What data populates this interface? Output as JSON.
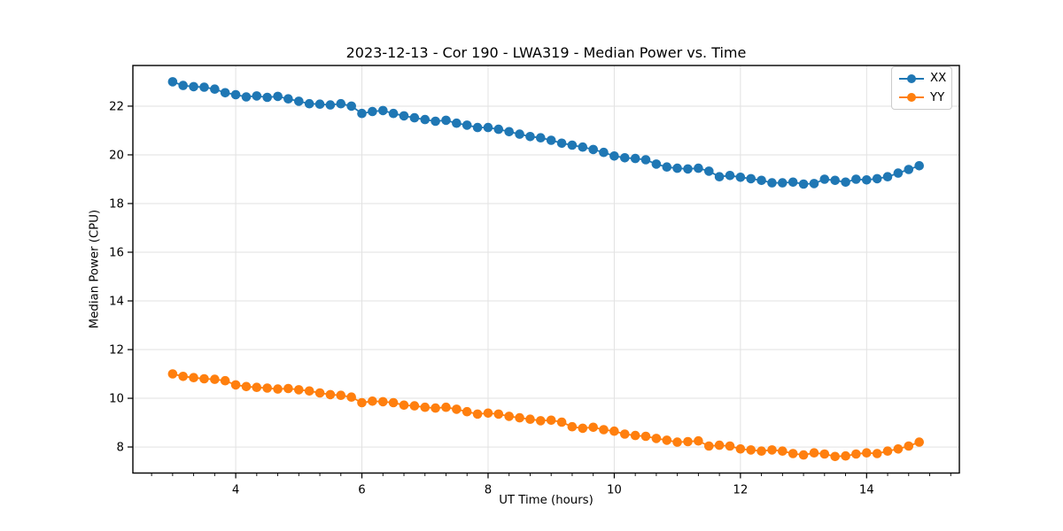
{
  "chart_data": {
    "type": "line",
    "title": "2023-12-13 - Cor 190 - LWA319 - Median Power vs. Time",
    "xlabel": "UT Time (hours)",
    "ylabel": "Median Power (CPU)",
    "xlim": [
      2.37,
      15.47
    ],
    "ylim": [
      6.93,
      23.67
    ],
    "xticks": [
      4,
      6,
      8,
      10,
      12,
      14
    ],
    "yticks": [
      8,
      10,
      12,
      14,
      16,
      18,
      20,
      22
    ],
    "minor_xtick_step": 0.33333,
    "minor_xtick_start": 2.66667,
    "grid": true,
    "legend_position": "upper right",
    "marker": "o",
    "x_start": 3.0,
    "x_step": 0.1666667,
    "series": [
      {
        "name": "XX",
        "color": "#1f77b4",
        "values": [
          23.0,
          22.85,
          22.8,
          22.78,
          22.7,
          22.55,
          22.47,
          22.38,
          22.42,
          22.36,
          22.4,
          22.3,
          22.2,
          22.1,
          22.08,
          22.05,
          22.1,
          22.0,
          21.7,
          21.78,
          21.82,
          21.7,
          21.6,
          21.52,
          21.45,
          21.38,
          21.42,
          21.3,
          21.22,
          21.12,
          21.12,
          21.05,
          20.95,
          20.85,
          20.75,
          20.7,
          20.6,
          20.48,
          20.4,
          20.32,
          20.22,
          20.1,
          19.95,
          19.88,
          19.85,
          19.8,
          19.62,
          19.5,
          19.45,
          19.42,
          19.45,
          19.33,
          19.1,
          19.15,
          19.08,
          19.02,
          18.95,
          18.85,
          18.85,
          18.88,
          18.8,
          18.82,
          19.0,
          18.95,
          18.88,
          19.0,
          18.97,
          19.02,
          19.1,
          19.25,
          19.4,
          19.55
        ]
      },
      {
        "name": "YY",
        "color": "#ff7f0e",
        "values": [
          11.0,
          10.9,
          10.85,
          10.8,
          10.78,
          10.72,
          10.55,
          10.48,
          10.45,
          10.42,
          10.38,
          10.4,
          10.35,
          10.3,
          10.22,
          10.15,
          10.12,
          10.05,
          9.82,
          9.88,
          9.86,
          9.82,
          9.72,
          9.69,
          9.63,
          9.6,
          9.63,
          9.55,
          9.45,
          9.35,
          9.39,
          9.35,
          9.26,
          9.2,
          9.14,
          9.08,
          9.1,
          9.02,
          8.83,
          8.77,
          8.81,
          8.71,
          8.65,
          8.53,
          8.47,
          8.44,
          8.35,
          8.28,
          8.2,
          8.22,
          8.25,
          8.04,
          8.07,
          8.04,
          7.92,
          7.88,
          7.83,
          7.88,
          7.83,
          7.73,
          7.67,
          7.76,
          7.71,
          7.61,
          7.63,
          7.71,
          7.76,
          7.73,
          7.83,
          7.92,
          8.04,
          8.2
        ]
      }
    ],
    "style": {
      "background": "#ffffff",
      "grid_color": "#e2e2e2",
      "spine_color": "#000000",
      "tick_color": "#000000",
      "marker_radius": 5.3,
      "line_width": 1.8
    }
  }
}
